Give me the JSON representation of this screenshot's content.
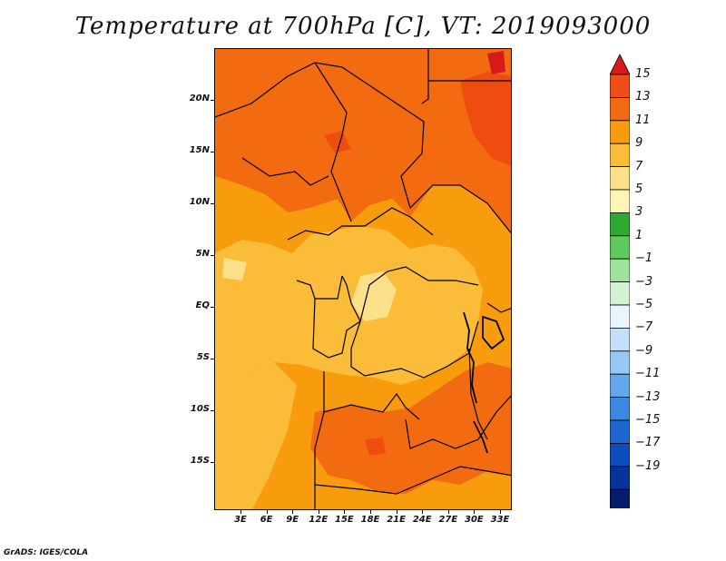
{
  "title": "Temperature at 700hPa [C], VT: 2019093000",
  "credit": "GrADS: IGES/COLA",
  "map": {
    "y_labels": [
      "20N",
      "15N",
      "10N",
      "5N",
      "EQ",
      "5S",
      "10S",
      "15S"
    ],
    "x_labels": [
      "3E",
      "6E",
      "9E",
      "12E",
      "15E",
      "18E",
      "21E",
      "24E",
      "27E",
      "30E",
      "33E"
    ],
    "colors": {
      "c5_7": "#fce08a",
      "c7_9": "#fbbc3a",
      "c9_11": "#f89b0c",
      "c11_13": "#f36b10",
      "c13_15": "#ef4d10",
      "border": "#000000"
    }
  },
  "colorbar": {
    "labels": [
      "15",
      "13",
      "11",
      "9",
      "7",
      "5",
      "3",
      "1",
      "−1",
      "−3",
      "−5",
      "−7",
      "−9",
      "−11",
      "−13",
      "−15",
      "−17",
      "−19"
    ],
    "colors": [
      "#d7191c",
      "#f04e16",
      "#f36b10",
      "#f89b0c",
      "#fbbc3a",
      "#fce08a",
      "#fdf6b5",
      "#2fa82f",
      "#5fc85f",
      "#9ee29e",
      "#d2f4d2",
      "#eaf4fc",
      "#c4e0f8",
      "#96c8f4",
      "#64a8ec",
      "#3a88e0",
      "#1c66d2",
      "#0c4cbc",
      "#08339c",
      "#061d6a",
      "#d6dcf4"
    ]
  }
}
